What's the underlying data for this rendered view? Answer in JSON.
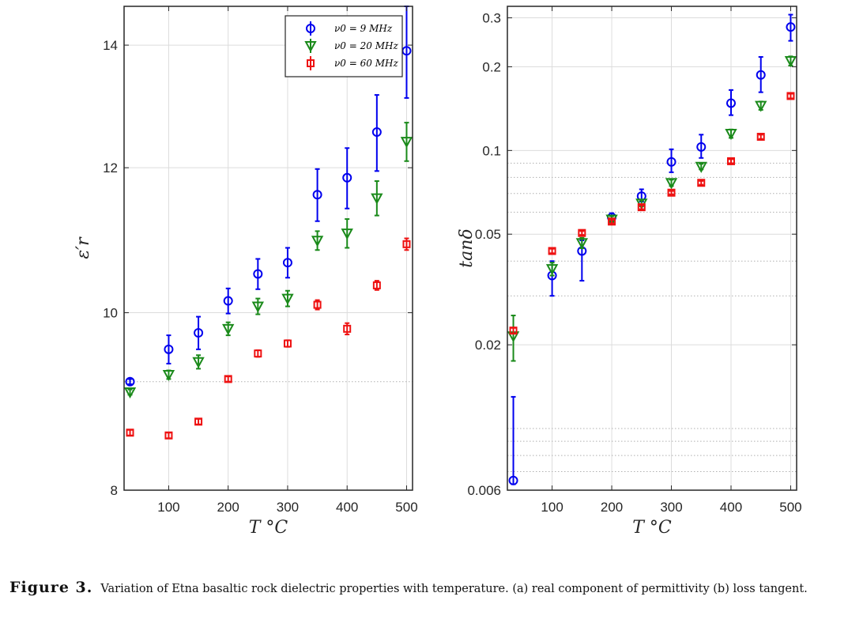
{
  "caption": {
    "label": "Figure 3.",
    "text": "Variation of Etna basaltic rock dielectric properties with temperature. (a) real component of permittivity (b) loss tangent."
  },
  "colors": {
    "s9": "#0000ee",
    "s20": "#1a8a1a",
    "s60": "#ee1111"
  },
  "chart_data": [
    {
      "type": "scatter",
      "xlabel": "T °C",
      "ylabel": "ε′r",
      "xlim": [
        25,
        510
      ],
      "ylim": [
        8,
        14.7
      ],
      "yscale": "log",
      "xticks": [
        100,
        200,
        300,
        400,
        500
      ],
      "yticks": [
        8,
        10,
        12,
        14
      ],
      "grid": true,
      "legend": "top-right",
      "series": [
        {
          "name": "ν0 = 9  MHz",
          "marker": "circle",
          "x": [
            35,
            100,
            150,
            200,
            250,
            300,
            350,
            400,
            450,
            500
          ],
          "y": [
            9.17,
            9.55,
            9.75,
            10.15,
            10.5,
            10.65,
            11.6,
            11.85,
            12.55,
            13.9
          ],
          "err": [
            0.03,
            0.17,
            0.2,
            0.16,
            0.2,
            0.2,
            0.38,
            0.45,
            0.6,
            0.8
          ]
        },
        {
          "name": "ν0 = 20  MHz",
          "marker": "triangle-down",
          "x": [
            35,
            100,
            150,
            200,
            250,
            300,
            350,
            400,
            450,
            500
          ],
          "y": [
            9.05,
            9.25,
            9.4,
            9.8,
            10.08,
            10.18,
            10.95,
            11.05,
            11.55,
            12.4
          ],
          "err": [
            0.03,
            0.05,
            0.08,
            0.08,
            0.1,
            0.1,
            0.13,
            0.2,
            0.25,
            0.3
          ]
        },
        {
          "name": "ν0 = 60  MHz",
          "marker": "square",
          "x": [
            35,
            100,
            150,
            200,
            250,
            300,
            350,
            400,
            450,
            500
          ],
          "y": [
            8.6,
            8.57,
            8.72,
            9.2,
            9.5,
            9.62,
            10.1,
            9.8,
            10.35,
            10.9
          ],
          "err": [
            0.03,
            0.03,
            0.03,
            0.03,
            0.04,
            0.04,
            0.06,
            0.07,
            0.06,
            0.08
          ]
        }
      ]
    },
    {
      "type": "scatter",
      "xlabel": "T °C",
      "ylabel": "tanδ",
      "xlim": [
        25,
        510
      ],
      "ylim": [
        0.006,
        0.33
      ],
      "yscale": "log",
      "xticks": [
        100,
        200,
        300,
        400,
        500
      ],
      "yticks": [
        0.006,
        0.02,
        0.05,
        0.1,
        0.2,
        0.3
      ],
      "grid": true,
      "series": [
        {
          "name": "ν0 = 9  MHz",
          "marker": "circle",
          "x": [
            35,
            100,
            150,
            200,
            250,
            300,
            350,
            400,
            450,
            500
          ],
          "y": [
            0.0065,
            0.0355,
            0.0435,
            0.0575,
            0.0685,
            0.091,
            0.103,
            0.148,
            0.187,
            0.278
          ],
          "err_lo": [
            0.0002,
            0.0055,
            0.0095,
            0.002,
            0.003,
            0.0075,
            0.009,
            0.014,
            0.025,
            0.03
          ],
          "err_hi": [
            0.0065,
            0.0045,
            0.004,
            0.002,
            0.004,
            0.01,
            0.011,
            0.017,
            0.03,
            0.03
          ]
        },
        {
          "name": "ν0 = 20  MHz",
          "marker": "triangle-down",
          "x": [
            35,
            100,
            150,
            200,
            250,
            300,
            350,
            400,
            450,
            500
          ],
          "y": [
            0.0215,
            0.0375,
            0.0465,
            0.0565,
            0.0645,
            0.0765,
            0.0875,
            0.115,
            0.145,
            0.21
          ],
          "err": [
            0.004,
            0.002,
            0.002,
            0.0015,
            0.0015,
            0.002,
            0.002,
            0.004,
            0.005,
            0.008
          ]
        },
        {
          "name": "ν0 = 60  MHz",
          "marker": "square",
          "x": [
            35,
            100,
            150,
            200,
            250,
            300,
            350,
            400,
            450,
            500
          ],
          "y": [
            0.0225,
            0.0435,
            0.0505,
            0.0555,
            0.0625,
            0.0705,
            0.0765,
            0.0915,
            0.112,
            0.157
          ],
          "err": [
            0.0005,
            0.0008,
            0.0008,
            0.0008,
            0.001,
            0.001,
            0.0012,
            0.0015,
            0.002,
            0.003
          ]
        }
      ]
    }
  ]
}
